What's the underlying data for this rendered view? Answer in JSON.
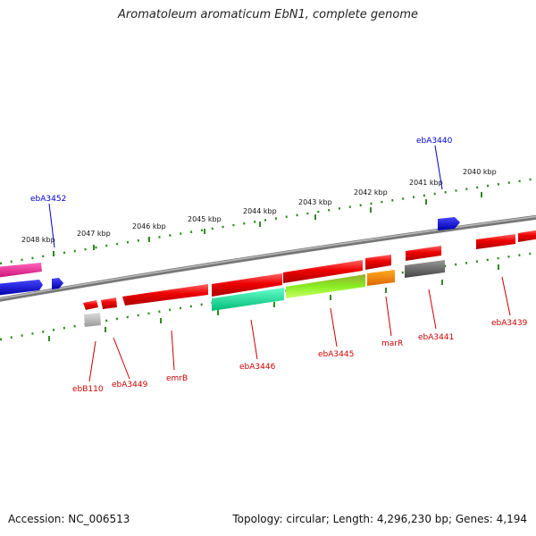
{
  "title": "Aromatoleum aromaticum EbN1, complete genome",
  "footer": {
    "accession": "Accession: NC_006513",
    "summary": "Topology: circular; Length: 4,296,230 bp; Genes: 4,194"
  },
  "colors": {
    "backbone": "#8a8a8a",
    "ruler": "#2e8b20",
    "label_minus": "#cc0000",
    "label_plus": "#0000cc"
  },
  "ruler_labels": [
    "2048 kbp",
    "2047 kbp",
    "2046 kbp",
    "2045 kbp",
    "2044 kbp",
    "2043 kbp",
    "2042 kbp",
    "2041 kbp",
    "2040 kbp"
  ],
  "gene_labels": [
    {
      "text": "ebA3452",
      "strand": "plus"
    },
    {
      "text": "ebA3440",
      "strand": "plus"
    },
    {
      "text": "ebB110",
      "strand": "minus"
    },
    {
      "text": "ebA3449",
      "strand": "minus"
    },
    {
      "text": "emrB",
      "strand": "minus"
    },
    {
      "text": "ebA3446",
      "strand": "minus"
    },
    {
      "text": "ebA3445",
      "strand": "minus"
    },
    {
      "text": "marR",
      "strand": "minus"
    },
    {
      "text": "ebA3441",
      "strand": "minus"
    },
    {
      "text": "ebA3439",
      "strand": "minus"
    }
  ]
}
